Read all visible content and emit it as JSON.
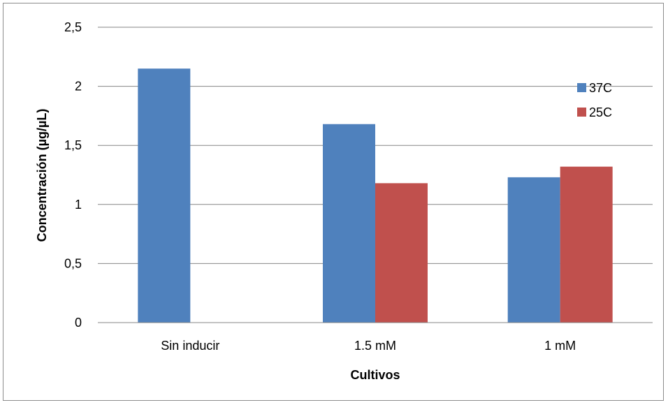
{
  "chart_data": {
    "type": "bar",
    "categories": [
      "Sin inducir",
      "1.5 mM",
      "1 mM"
    ],
    "series": [
      {
        "name": "37C",
        "values": [
          2.15,
          1.68,
          1.23
        ],
        "color": "#4f81bd"
      },
      {
        "name": "25C",
        "values": [
          null,
          1.18,
          1.32
        ],
        "color": "#c0504d"
      }
    ],
    "xlabel": "Cultivos",
    "ylabel": "Concentración (µg/µL)",
    "ylim": [
      0,
      2.5
    ],
    "yticks": [
      0,
      0.5,
      1,
      1.5,
      2,
      2.5
    ],
    "ytick_labels": [
      "0",
      "0,5",
      "1",
      "1,5",
      "2",
      "2,5"
    ],
    "grid": true,
    "legend_position": "top-right"
  }
}
